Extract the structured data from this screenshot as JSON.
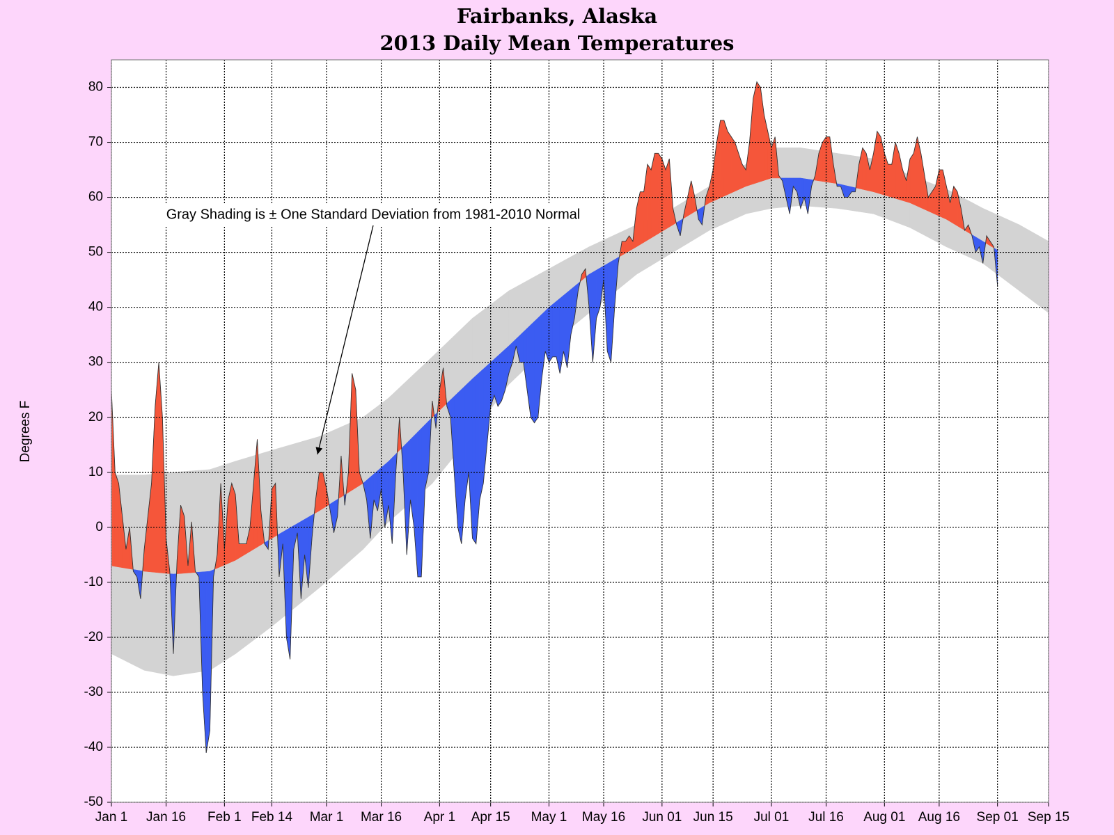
{
  "chart_data": {
    "type": "anomaly-area",
    "title": [
      "Fairbanks, Alaska",
      "2013 Daily Mean Temperatures"
    ],
    "y_label": "Degrees F",
    "annotation": "Gray Shading is ± One Standard Deviation from 1981-2010 Normal",
    "xlim": [
      1,
      258
    ],
    "xticks": [
      {
        "value": 1,
        "label": "Jan 1"
      },
      {
        "value": 16,
        "label": "Jan 16"
      },
      {
        "value": 32,
        "label": "Feb 1"
      },
      {
        "value": 45,
        "label": "Feb 14"
      },
      {
        "value": 60,
        "label": "Mar 1"
      },
      {
        "value": 75,
        "label": "Mar 16"
      },
      {
        "value": 91,
        "label": "Apr 1"
      },
      {
        "value": 105,
        "label": "Apr 15"
      },
      {
        "value": 121,
        "label": "May 1"
      },
      {
        "value": 136,
        "label": "May 16"
      },
      {
        "value": 152,
        "label": "Jun 01"
      },
      {
        "value": 166,
        "label": "Jun 15"
      },
      {
        "value": 182,
        "label": "Jul 01"
      },
      {
        "value": 197,
        "label": "Jul 16"
      },
      {
        "value": 213,
        "label": "Aug 01"
      },
      {
        "value": 228,
        "label": "Aug 16"
      },
      {
        "value": 244,
        "label": "Sep 01"
      },
      {
        "value": 258,
        "label": "Sep 15"
      }
    ],
    "ylim": [
      -50,
      85
    ],
    "yticks": [
      -50,
      -40,
      -30,
      -20,
      -10,
      0,
      10,
      20,
      30,
      40,
      50,
      60,
      70,
      80
    ],
    "grid": true,
    "above_color": "#f5563a",
    "below_color": "#3b5cf2",
    "band_color": "#d3d3d3",
    "observed": {
      "x": [
        1,
        2,
        3,
        4,
        5,
        6,
        7,
        8,
        9,
        10,
        11,
        12,
        13,
        14,
        15,
        16,
        17,
        18,
        19,
        20,
        21,
        22,
        23,
        24,
        25,
        26,
        27,
        28,
        29,
        30,
        31,
        32,
        33,
        34,
        35,
        36,
        37,
        38,
        39,
        40,
        41,
        42,
        43,
        44,
        45,
        46,
        47,
        48,
        49,
        50,
        51,
        52,
        53,
        54,
        55,
        56,
        57,
        58,
        59,
        60,
        61,
        62,
        63,
        64,
        65,
        66,
        67,
        68,
        69,
        70,
        71,
        72,
        73,
        74,
        75,
        76,
        77,
        78,
        79,
        80,
        81,
        82,
        83,
        84,
        85,
        86,
        87,
        88,
        89,
        90,
        91,
        92,
        93,
        94,
        95,
        96,
        97,
        98,
        99,
        100,
        101,
        102,
        103,
        104,
        105,
        106,
        107,
        108,
        109,
        110,
        111,
        112,
        113,
        114,
        115,
        116,
        117,
        118,
        119,
        120,
        121,
        122,
        123,
        124,
        125,
        126,
        127,
        128,
        129,
        130,
        131,
        132,
        133,
        134,
        135,
        136,
        137,
        138,
        139,
        140,
        141,
        142,
        143,
        144,
        145,
        146,
        147,
        148,
        149,
        150,
        151,
        152,
        153,
        154,
        155,
        156,
        157,
        158,
        159,
        160,
        161,
        162,
        163,
        164,
        165,
        166,
        167,
        168,
        169,
        170,
        171,
        172,
        173,
        174,
        175,
        176,
        177,
        178,
        179,
        180,
        181,
        182,
        183,
        184,
        185,
        186,
        187,
        188,
        189,
        190,
        191,
        192,
        193,
        194,
        195,
        196,
        197,
        198,
        199,
        200,
        201,
        202,
        203,
        204,
        205,
        206,
        207,
        208,
        209,
        210,
        211,
        212,
        213,
        214,
        215,
        216,
        217,
        218,
        219,
        220,
        221,
        222,
        223,
        224,
        225,
        226,
        227,
        228,
        229,
        230,
        231,
        232,
        233,
        234,
        235,
        236,
        237,
        238,
        239,
        240,
        241,
        242,
        243,
        244
      ],
      "values": [
        25,
        10,
        8,
        2,
        -4,
        0,
        -8,
        -9,
        -13,
        -4,
        2,
        8,
        22,
        30,
        20,
        -2,
        -8,
        -23,
        -6,
        4,
        2,
        -7,
        1,
        -8,
        -9,
        -30,
        -41,
        -37,
        -9,
        -5,
        8,
        -4,
        5,
        8,
        6,
        -3,
        -3,
        -3,
        0,
        8,
        16,
        3,
        -3,
        -4,
        7,
        8,
        -9,
        -3,
        -20,
        -24,
        -4,
        -1,
        -13,
        -5,
        -11,
        -2,
        5,
        10,
        10,
        7,
        3,
        -1,
        2,
        13,
        4,
        10,
        28,
        25,
        10,
        8,
        5,
        -2,
        5,
        3,
        7,
        0,
        4,
        -3,
        10,
        20,
        10,
        -5,
        5,
        0,
        -9,
        -9,
        7,
        10,
        23,
        18,
        25,
        29,
        22,
        20,
        10,
        0,
        -3,
        5,
        10,
        -2,
        -3,
        5,
        8,
        15,
        22,
        24,
        22,
        23,
        25,
        28,
        30,
        33,
        30,
        30,
        25,
        20,
        19,
        20,
        27,
        32,
        30,
        31,
        31,
        28,
        32,
        29,
        35,
        38,
        43,
        46,
        47,
        40,
        30,
        38,
        40,
        45,
        32,
        30,
        40,
        48,
        52,
        52,
        53,
        52,
        58,
        61,
        61,
        66,
        65,
        68,
        68,
        67,
        65,
        67,
        58,
        55,
        53,
        57,
        60,
        63,
        60,
        56,
        55,
        60,
        62,
        65,
        70,
        74,
        74,
        72,
        71,
        70,
        68,
        66,
        65,
        70,
        78,
        81,
        80,
        75,
        72,
        69,
        71,
        64,
        63,
        60,
        57,
        62,
        61,
        58,
        60,
        57,
        62,
        64,
        68,
        70,
        71,
        71,
        66,
        62,
        62,
        60,
        60,
        61,
        61,
        66,
        69,
        68,
        65,
        68,
        72,
        71,
        68,
        66,
        66,
        70,
        68,
        65,
        63,
        67,
        68,
        71,
        68,
        64,
        60,
        61,
        62,
        65,
        65,
        62,
        59,
        62,
        61,
        58,
        54,
        55,
        53,
        50,
        51,
        48,
        53,
        52,
        51,
        44
      ]
    },
    "normal": {
      "x": [
        1,
        10,
        18,
        28,
        35,
        45,
        58,
        70,
        77,
        89,
        100,
        110,
        121,
        132,
        145,
        155,
        165,
        175,
        182,
        190,
        200,
        210,
        220,
        230,
        240,
        250,
        258
      ],
      "values": [
        -7,
        -8,
        -8.5,
        -8,
        -6,
        -2,
        3,
        8,
        12,
        20,
        27,
        33,
        40,
        46,
        51,
        55,
        59,
        62,
        63.5,
        63.5,
        62.5,
        61,
        59,
        56,
        52,
        48,
        45.5
      ],
      "upper": [
        9.5,
        9.5,
        10,
        10.5,
        12,
        14,
        16.5,
        20,
        23.5,
        31,
        38,
        43,
        47,
        51,
        55,
        58,
        62,
        66,
        69,
        69,
        68,
        67,
        64,
        61.5,
        58,
        55,
        52
      ],
      "lower": [
        -23,
        -26,
        -27,
        -26,
        -23,
        -18,
        -11,
        -4,
        1,
        8,
        17,
        26,
        33,
        39,
        46,
        50,
        54,
        57,
        58,
        58.5,
        58,
        57,
        54.5,
        51,
        48,
        43,
        39
      ]
    }
  }
}
